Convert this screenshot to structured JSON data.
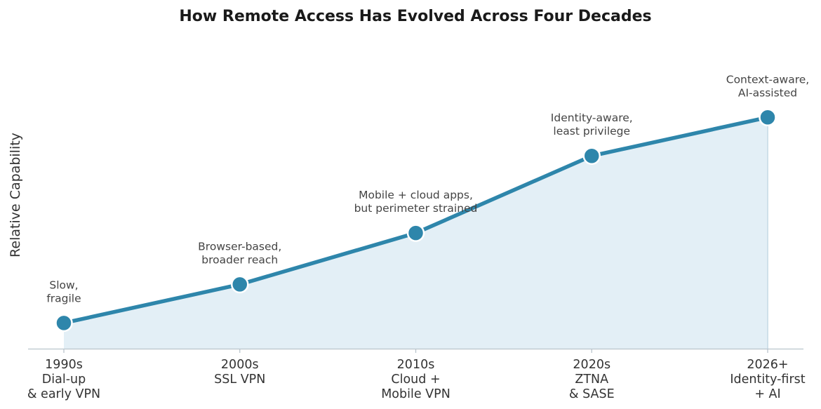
{
  "chart_data": {
    "type": "area",
    "title": "How Remote Access Has Evolved Across Four Decades",
    "xlabel": "",
    "ylabel": "Relative Capability",
    "categories": [
      [
        "1990s",
        "Dial-up",
        "& early VPN"
      ],
      [
        "2000s",
        "SSL VPN"
      ],
      [
        "2010s",
        "Cloud +",
        "Mobile VPN"
      ],
      [
        "2020s",
        "ZTNA",
        "& SASE"
      ],
      [
        "2026+",
        "Identity-first",
        "+ AI"
      ]
    ],
    "values": [
      1,
      2.5,
      4.5,
      7.5,
      9
    ],
    "ylim": [
      0,
      11
    ],
    "annotations": [
      [
        "Slow,",
        "fragile"
      ],
      [
        "Browser-based,",
        "broader reach"
      ],
      [
        "Mobile + cloud apps,",
        "but perimeter strained"
      ],
      [
        "Identity-aware,",
        "least privilege"
      ],
      [
        "Context-aware,",
        "AI-assisted"
      ]
    ],
    "grid": false,
    "colors": {
      "line": "#2e86ab",
      "fill": "#e3eff6",
      "marker_edge": "#ffffff",
      "axis": "#b9c4cc"
    }
  }
}
